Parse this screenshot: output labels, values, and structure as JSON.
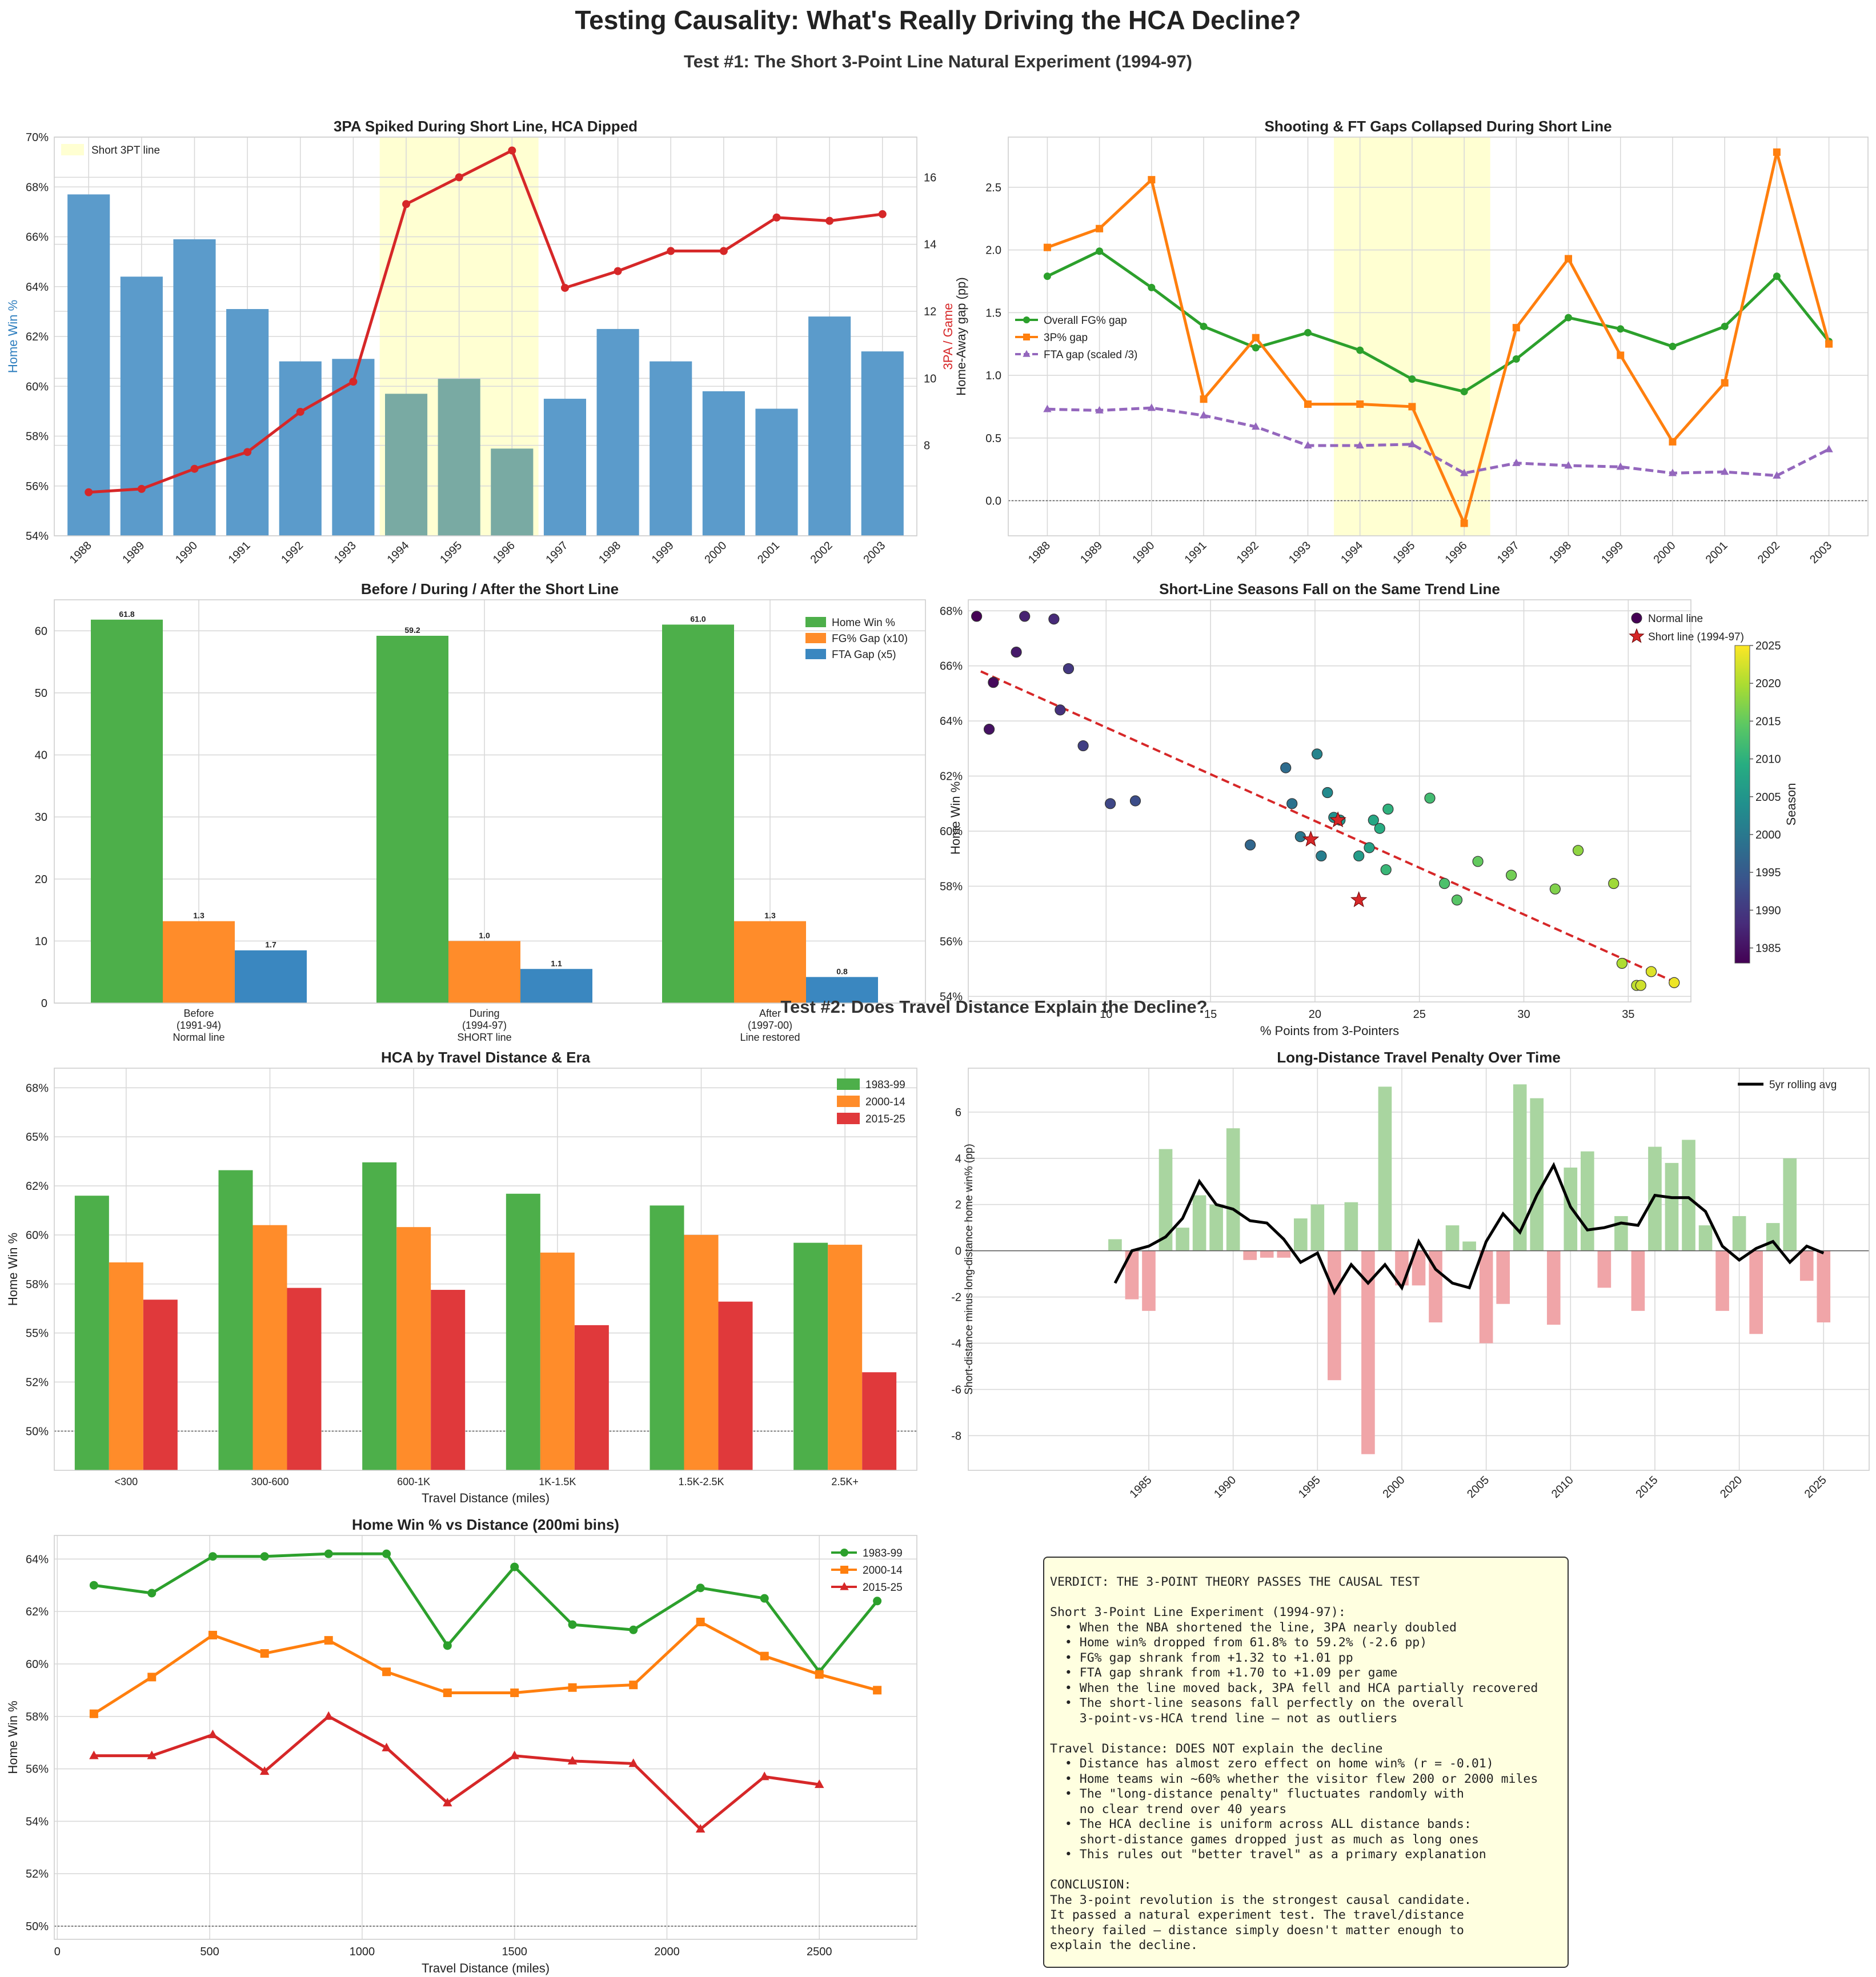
{
  "title": "Testing Causality: What's Really Driving the HCA Decline?",
  "subtitle": "Test #1: The Short 3-Point Line Natural Experiment (1994-97)",
  "subtitle2": "Test #2: Does Travel Distance Explain the Decline?",
  "chart_data": [
    {
      "id": "p1",
      "type": "bar",
      "title": "3PA Spiked During Short Line, HCA Dipped",
      "ylabel": "Home Win %",
      "y2label": "3PA / Game",
      "legend": [
        "Short 3PT line"
      ],
      "categories": [
        "1988",
        "1989",
        "1990",
        "1991",
        "1992",
        "1993",
        "1994",
        "1995",
        "1996",
        "1997",
        "1998",
        "1999",
        "2000",
        "2001",
        "2002",
        "2003"
      ],
      "values": [
        67.7,
        64.4,
        65.9,
        63.1,
        61.0,
        61.1,
        59.7,
        60.3,
        57.5,
        59.5,
        62.3,
        61.0,
        59.8,
        59.1,
        62.8,
        61.4
      ],
      "line_values": [
        6.6,
        6.7,
        7.3,
        7.8,
        9.0,
        9.9,
        15.2,
        16.0,
        16.8,
        12.7,
        13.2,
        13.8,
        13.8,
        14.8,
        14.7,
        14.9
      ],
      "ylim": [
        54,
        70
      ],
      "y2lim": [
        5.3,
        17.2
      ],
      "yticks": [
        "54%",
        "56%",
        "58%",
        "60%",
        "62%",
        "64%",
        "66%",
        "68%",
        "70%"
      ],
      "y2ticks": [
        "8",
        "10",
        "12",
        "14",
        "16"
      ],
      "highlight": [
        "1994",
        "1996"
      ],
      "colors": {
        "bar": "#5b9bcb",
        "bar_short": "#79aaa3",
        "line": "#d62728",
        "shade": "#ffffd2"
      }
    },
    {
      "id": "p2",
      "type": "line",
      "title": "Shooting & FT Gaps Collapsed During Short Line",
      "ylabel": "Home-Away gap (pp)",
      "categories": [
        "1988",
        "1989",
        "1990",
        "1991",
        "1992",
        "1993",
        "1994",
        "1995",
        "1996",
        "1997",
        "1998",
        "1999",
        "2000",
        "2001",
        "2002",
        "2003"
      ],
      "series": [
        {
          "name": "Overall FG% gap",
          "color": "#2ca02c",
          "values": [
            1.79,
            1.99,
            1.7,
            1.39,
            1.22,
            1.34,
            1.2,
            0.97,
            0.87,
            1.13,
            1.46,
            1.37,
            1.23,
            1.39,
            1.79,
            1.27
          ]
        },
        {
          "name": "3P% gap",
          "color": "#ff7f0e",
          "values": [
            2.02,
            2.17,
            2.56,
            0.81,
            1.3,
            0.77,
            0.77,
            0.75,
            -0.18,
            1.38,
            1.93,
            1.16,
            0.47,
            0.94,
            2.78,
            1.25
          ]
        },
        {
          "name": "FTA gap (scaled /3)",
          "color": "#9467bd",
          "values": [
            0.73,
            0.72,
            0.74,
            0.68,
            0.59,
            0.44,
            0.44,
            0.45,
            0.22,
            0.3,
            0.28,
            0.27,
            0.22,
            0.23,
            0.2,
            0.41
          ]
        }
      ],
      "ylim": [
        -0.28,
        2.9
      ],
      "yticks": [
        "0.0",
        "0.5",
        "1.0",
        "1.5",
        "2.0",
        "2.5"
      ]
    },
    {
      "id": "p3",
      "type": "bar",
      "title": "Before / During / After the Short Line",
      "categories": [
        "Before\n(1991-94)\nNormal line",
        "During\n(1994-97)\nSHORT line",
        "After\n(1997-00)\nLine restored"
      ],
      "series": [
        {
          "name": "Home Win %",
          "color": "#4daf4a",
          "values": [
            61.8,
            59.2,
            61.0
          ],
          "labels": [
            "61.8",
            "59.2",
            "61.0"
          ]
        },
        {
          "name": "FG% Gap (x10)",
          "color": "#ff8c2a",
          "values": [
            13.2,
            10.0,
            13.2
          ],
          "labels": [
            "1.3",
            "1.0",
            "1.3"
          ]
        },
        {
          "name": "FTA Gap (x5)",
          "color": "#3a87c0",
          "values": [
            8.5,
            5.5,
            4.2
          ],
          "labels": [
            "1.7",
            "1.1",
            "0.8"
          ]
        }
      ],
      "ylim": [
        0,
        65
      ],
      "yticks": [
        "0",
        "10",
        "20",
        "30",
        "40",
        "50",
        "60"
      ]
    },
    {
      "id": "p4",
      "type": "scatter",
      "title": "Short-Line Seasons Fall on the Same Trend Line",
      "xlabel": "% Points from 3-Pointers",
      "ylabel": "Home Win %",
      "colorbar_label": "Season",
      "colorbar_ticks": [
        "1985",
        "1990",
        "1995",
        "2000",
        "2005",
        "2010",
        "2015",
        "2020",
        "2025"
      ],
      "legend": [
        "Normal line",
        "Short line (1994-97)"
      ],
      "xlim": [
        3.4,
        38
      ],
      "ylim": [
        53.8,
        68.4
      ],
      "xticks": [
        "10",
        "15",
        "20",
        "25",
        "30",
        "35"
      ],
      "yticks": [
        "54%",
        "56%",
        "58%",
        "60%",
        "62%",
        "64%",
        "66%",
        "68%"
      ],
      "points": [
        {
          "season": 1983,
          "x": 3.8,
          "y": 67.8
        },
        {
          "season": 1984,
          "x": 4.6,
          "y": 65.4
        },
        {
          "season": 1985,
          "x": 4.4,
          "y": 63.7
        },
        {
          "season": 1986,
          "x": 5.7,
          "y": 66.5
        },
        {
          "season": 1987,
          "x": 6.1,
          "y": 67.8
        },
        {
          "season": 1988,
          "x": 7.5,
          "y": 67.7
        },
        {
          "season": 1989,
          "x": 7.8,
          "y": 64.4
        },
        {
          "season": 1990,
          "x": 8.2,
          "y": 65.9
        },
        {
          "season": 1991,
          "x": 8.9,
          "y": 63.1
        },
        {
          "season": 1992,
          "x": 10.2,
          "y": 61.0
        },
        {
          "season": 1993,
          "x": 11.4,
          "y": 61.1
        },
        {
          "season": 1997,
          "x": 16.9,
          "y": 59.5
        },
        {
          "season": 1998,
          "x": 18.6,
          "y": 62.3
        },
        {
          "season": 1999,
          "x": 18.9,
          "y": 61.0
        },
        {
          "season": 2000,
          "x": 19.3,
          "y": 59.8
        },
        {
          "season": 2001,
          "x": 20.3,
          "y": 59.1
        },
        {
          "season": 2002,
          "x": 20.1,
          "y": 62.8
        },
        {
          "season": 2003,
          "x": 20.6,
          "y": 61.4
        },
        {
          "season": 2004,
          "x": 20.9,
          "y": 60.5
        },
        {
          "season": 2005,
          "x": 21.2,
          "y": 60.4
        },
        {
          "season": 2006,
          "x": 22.1,
          "y": 59.1
        },
        {
          "season": 2007,
          "x": 22.6,
          "y": 59.4
        },
        {
          "season": 2008,
          "x": 22.8,
          "y": 60.4
        },
        {
          "season": 2009,
          "x": 23.1,
          "y": 60.1
        },
        {
          "season": 2010,
          "x": 23.5,
          "y": 60.8
        },
        {
          "season": 2011,
          "x": 23.4,
          "y": 58.6
        },
        {
          "season": 2012,
          "x": 25.5,
          "y": 61.2
        },
        {
          "season": 2013,
          "x": 26.2,
          "y": 58.1
        },
        {
          "season": 2014,
          "x": 26.8,
          "y": 57.5
        },
        {
          "season": 2015,
          "x": 27.8,
          "y": 58.9
        },
        {
          "season": 2016,
          "x": 29.4,
          "y": 58.4
        },
        {
          "season": 2017,
          "x": 31.5,
          "y": 57.9
        },
        {
          "season": 2018,
          "x": 32.6,
          "y": 59.3
        },
        {
          "season": 2019,
          "x": 34.3,
          "y": 58.1
        },
        {
          "season": 2020,
          "x": 34.7,
          "y": 55.2
        },
        {
          "season": 2021,
          "x": 35.4,
          "y": 54.4
        },
        {
          "season": 2022,
          "x": 35.6,
          "y": 54.4
        },
        {
          "season": 2023,
          "x": 36.1,
          "y": 54.9
        },
        {
          "season": 2024,
          "x": 37.2,
          "y": 54.5
        }
      ],
      "short_points": [
        {
          "season": 1994,
          "x": 19.8,
          "y": 59.7
        },
        {
          "season": 1995,
          "x": 21.1,
          "y": 60.4
        },
        {
          "season": 1996,
          "x": 22.1,
          "y": 57.5
        }
      ],
      "trend": {
        "x": [
          4.0,
          37.0
        ],
        "y": [
          65.8,
          54.6
        ]
      },
      "colors": {
        "trend": "#d62728",
        "star": "#d62728"
      }
    },
    {
      "id": "p5",
      "type": "bar",
      "title": "HCA by Travel Distance & Era",
      "xlabel": "Travel Distance (miles)",
      "ylabel": "Home Win %",
      "categories": [
        "<300",
        "300-600",
        "600-1K",
        "1K-1.5K",
        "1.5K-2.5K",
        "2.5K+"
      ],
      "series": [
        {
          "name": "1983-99",
          "color": "#4daf4a",
          "values": [
            62.0,
            63.3,
            63.7,
            62.1,
            61.5,
            59.6
          ]
        },
        {
          "name": "2000-14",
          "color": "#ff8c2a",
          "values": [
            58.6,
            60.5,
            60.4,
            59.1,
            60.0,
            59.5
          ]
        },
        {
          "name": "2015-25",
          "color": "#e0393b",
          "values": [
            56.7,
            57.3,
            57.2,
            55.4,
            56.6,
            53.0
          ]
        }
      ],
      "ylim": [
        48,
        68.5
      ],
      "yticks": [
        "50%",
        "52%",
        "55%",
        "58%",
        "60%",
        "62%",
        "65%",
        "68%"
      ]
    },
    {
      "id": "p6",
      "type": "bar",
      "title": "Long-Distance Travel Penalty Over Time",
      "ylabel": "Short-distance minus long-distance home win% (pp)",
      "legend": [
        "5yr rolling avg"
      ],
      "years": [
        1983,
        1984,
        1985,
        1986,
        1987,
        1988,
        1989,
        1990,
        1991,
        1992,
        1993,
        1994,
        1995,
        1996,
        1997,
        1998,
        1999,
        2000,
        2001,
        2002,
        2003,
        2004,
        2005,
        2006,
        2007,
        2008,
        2009,
        2010,
        2011,
        2012,
        2013,
        2014,
        2015,
        2016,
        2017,
        2018,
        2019,
        2020,
        2021,
        2022,
        2023,
        2024,
        2025
      ],
      "values": [
        0.5,
        -2.1,
        -2.6,
        4.4,
        1.0,
        2.4,
        2.0,
        5.3,
        -0.4,
        -0.3,
        -0.3,
        1.4,
        2.0,
        -5.6,
        2.1,
        -8.8,
        7.1,
        -1.5,
        -1.5,
        -3.1,
        1.1,
        0.4,
        -4.0,
        -2.3,
        7.2,
        6.6,
        -3.2,
        3.6,
        4.3,
        -1.6,
        1.5,
        -2.6,
        4.5,
        3.8,
        4.8,
        1.1,
        -2.6,
        1.5,
        -3.6,
        1.2,
        4.0,
        -1.3,
        -3.1
      ],
      "rolling": [
        -1.4,
        0.0,
        0.2,
        0.6,
        1.4,
        3.0,
        2.0,
        1.8,
        1.3,
        1.2,
        0.5,
        -0.5,
        -0.1,
        -1.8,
        -0.6,
        -1.4,
        -0.6,
        -1.6,
        0.4,
        -0.8,
        -1.4,
        -1.6,
        0.4,
        1.6,
        0.8,
        2.4,
        3.7,
        1.9,
        0.9,
        1.0,
        1.2,
        1.1,
        2.4,
        2.3,
        2.3,
        1.7,
        0.2,
        -0.4,
        0.1,
        0.4,
        -0.5,
        0.2,
        -0.1
      ],
      "xticks": [
        "1985",
        "1990",
        "1995",
        "2000",
        "2005",
        "2010",
        "2015",
        "2020",
        "2025"
      ],
      "ylim": [
        -9.5,
        7.9
      ],
      "yticks": [
        "-8",
        "-6",
        "-4",
        "-2",
        "0",
        "2",
        "4",
        "6"
      ],
      "colors": {
        "pos": "#a9d5a0",
        "neg": "#f0a5a8",
        "line": "#000000"
      }
    },
    {
      "id": "p7",
      "type": "line",
      "title": "Home Win % vs Distance (200mi bins)",
      "xlabel": "Travel Distance (miles)",
      "ylabel": "Home Win %",
      "xlim": [
        -10,
        2820
      ],
      "ylim": [
        49.5,
        64.9
      ],
      "xticks": [
        "0",
        "500",
        "1000",
        "1500",
        "2000",
        "2500"
      ],
      "yticks": [
        "50%",
        "52%",
        "54%",
        "56%",
        "58%",
        "60%",
        "62%",
        "64%"
      ],
      "x": [
        120,
        310,
        510,
        680,
        890,
        1080,
        1280,
        1500,
        1690,
        1890,
        2110,
        2320,
        2500,
        2690
      ],
      "series": [
        {
          "name": "1983-99",
          "color": "#2ca02c",
          "marker": "circle",
          "values": [
            63.0,
            62.7,
            64.1,
            64.1,
            64.2,
            64.2,
            60.7,
            63.7,
            61.5,
            61.3,
            62.9,
            62.5,
            59.7,
            62.4
          ]
        },
        {
          "name": "2000-14",
          "color": "#ff7f0e",
          "marker": "square",
          "values": [
            58.1,
            59.5,
            61.1,
            60.4,
            60.9,
            59.7,
            58.9,
            58.9,
            59.1,
            59.2,
            61.6,
            60.3,
            59.6,
            59.0
          ]
        },
        {
          "name": "2015-25",
          "color": "#d62728",
          "marker": "triangle",
          "values": [
            56.5,
            56.5,
            57.3,
            55.9,
            58.0,
            56.8,
            54.7,
            56.5,
            56.3,
            56.2,
            53.7,
            55.7,
            55.4,
            null
          ]
        }
      ]
    }
  ],
  "verdict_lines": [
    "VERDICT: THE 3-POINT THEORY PASSES THE CAUSAL TEST",
    "",
    "Short 3-Point Line Experiment (1994-97):",
    "  • When the NBA shortened the line, 3PA nearly doubled",
    "  • Home win% dropped from 61.8% to 59.2% (-2.6 pp)",
    "  • FG% gap shrank from +1.32 to +1.01 pp",
    "  • FTA gap shrank from +1.70 to +1.09 per game",
    "  • When the line moved back, 3PA fell and HCA partially recovered",
    "  • The short-line seasons fall perfectly on the overall",
    "    3-point-vs-HCA trend line — not as outliers",
    "",
    "Travel Distance: DOES NOT explain the decline",
    "  • Distance has almost zero effect on home win% (r = -0.01)",
    "  • Home teams win ~60% whether the visitor flew 200 or 2000 miles",
    "  • The \"long-distance penalty\" fluctuates randomly with",
    "    no clear trend over 40 years",
    "  • The HCA decline is uniform across ALL distance bands:",
    "    short-distance games dropped just as much as long ones",
    "  • This rules out \"better travel\" as a primary explanation",
    "",
    "CONCLUSION:",
    "The 3-point revolution is the strongest causal candidate.",
    "It passed a natural experiment test. The travel/distance",
    "theory failed — distance simply doesn't matter enough to",
    "explain the decline."
  ]
}
